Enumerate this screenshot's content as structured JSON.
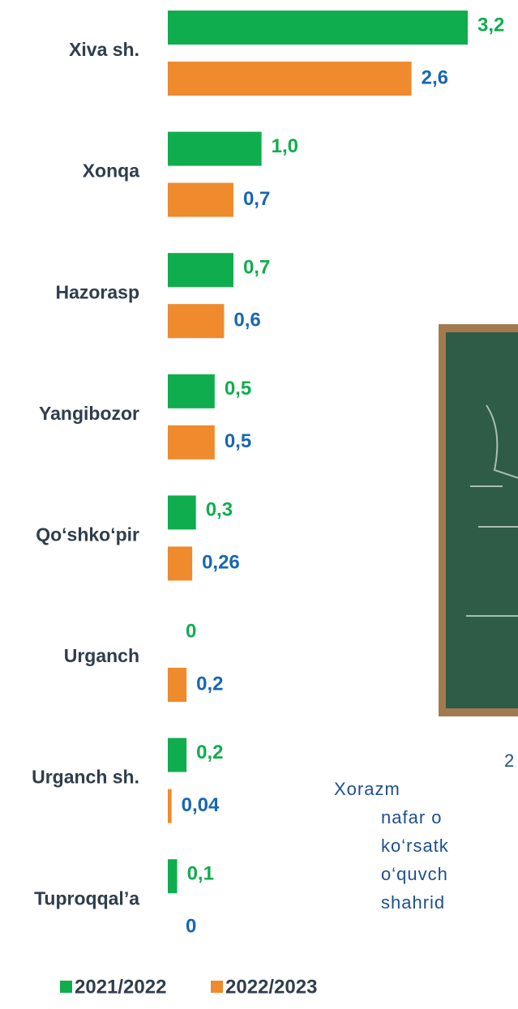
{
  "chart_data": {
    "type": "hbar",
    "categories": [
      "Xiva sh.",
      "Xonqa",
      "Hazorasp",
      "Yangibozor",
      "Qo‘shko‘pir",
      "Urganch",
      "Urganch sh.",
      "Tuproqqal’a"
    ],
    "series": [
      {
        "name": "2021/2022",
        "color": "#10ad4e",
        "label_color": "#10ad4e",
        "values": [
          3.2,
          1.0,
          0.7,
          0.5,
          0.3,
          0,
          0.2,
          0.1
        ],
        "value_labels": [
          "3,2",
          "1,0",
          "0,7",
          "0,5",
          "0,3",
          "0",
          "0,2",
          "0,1"
        ]
      },
      {
        "name": "2022/2023",
        "color": "#ef8a2d",
        "label_color": "#1767b3",
        "values": [
          2.6,
          0.7,
          0.6,
          0.5,
          0.26,
          0.2,
          0.04,
          0
        ],
        "value_labels": [
          "2,6",
          "0,7",
          "0,6",
          "0,5",
          "0,26",
          "0,2",
          "0,04",
          "0"
        ]
      }
    ],
    "xlim": [
      0,
      3.2
    ]
  },
  "text_lines": [
    "2",
    "Xorazm",
    "nafar o",
    "ko‘rsatk",
    "o‘quvch",
    "shahrid"
  ]
}
